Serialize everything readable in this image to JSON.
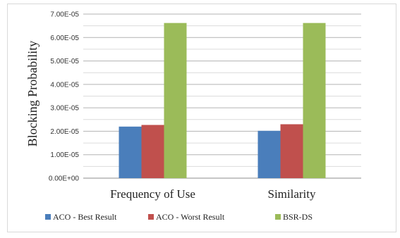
{
  "chart_data": {
    "type": "bar",
    "title": "",
    "xlabel": "",
    "ylabel": "Blocking Probability",
    "categories": [
      "Frequency of Use",
      "Similarity"
    ],
    "series": [
      {
        "name": "ACO - Best Result",
        "color": "#4a7ebb",
        "values": [
          2.2e-05,
          2.02e-05
        ]
      },
      {
        "name": "ACO - Worst Result",
        "color": "#c0504d",
        "values": [
          2.27e-05,
          2.3e-05
        ]
      },
      {
        "name": "BSR-DS",
        "color": "#9bbb59",
        "values": [
          6.62e-05,
          6.62e-05
        ]
      }
    ],
    "ylim": [
      0,
      7e-05
    ],
    "yticks": [
      "0.00E+00",
      "1.00E-05",
      "2.00E-05",
      "3.00E-05",
      "4.00E-05",
      "5.00E-05",
      "6.00E-05",
      "7.00E-05"
    ],
    "grid": true,
    "legend_position": "bottom"
  }
}
